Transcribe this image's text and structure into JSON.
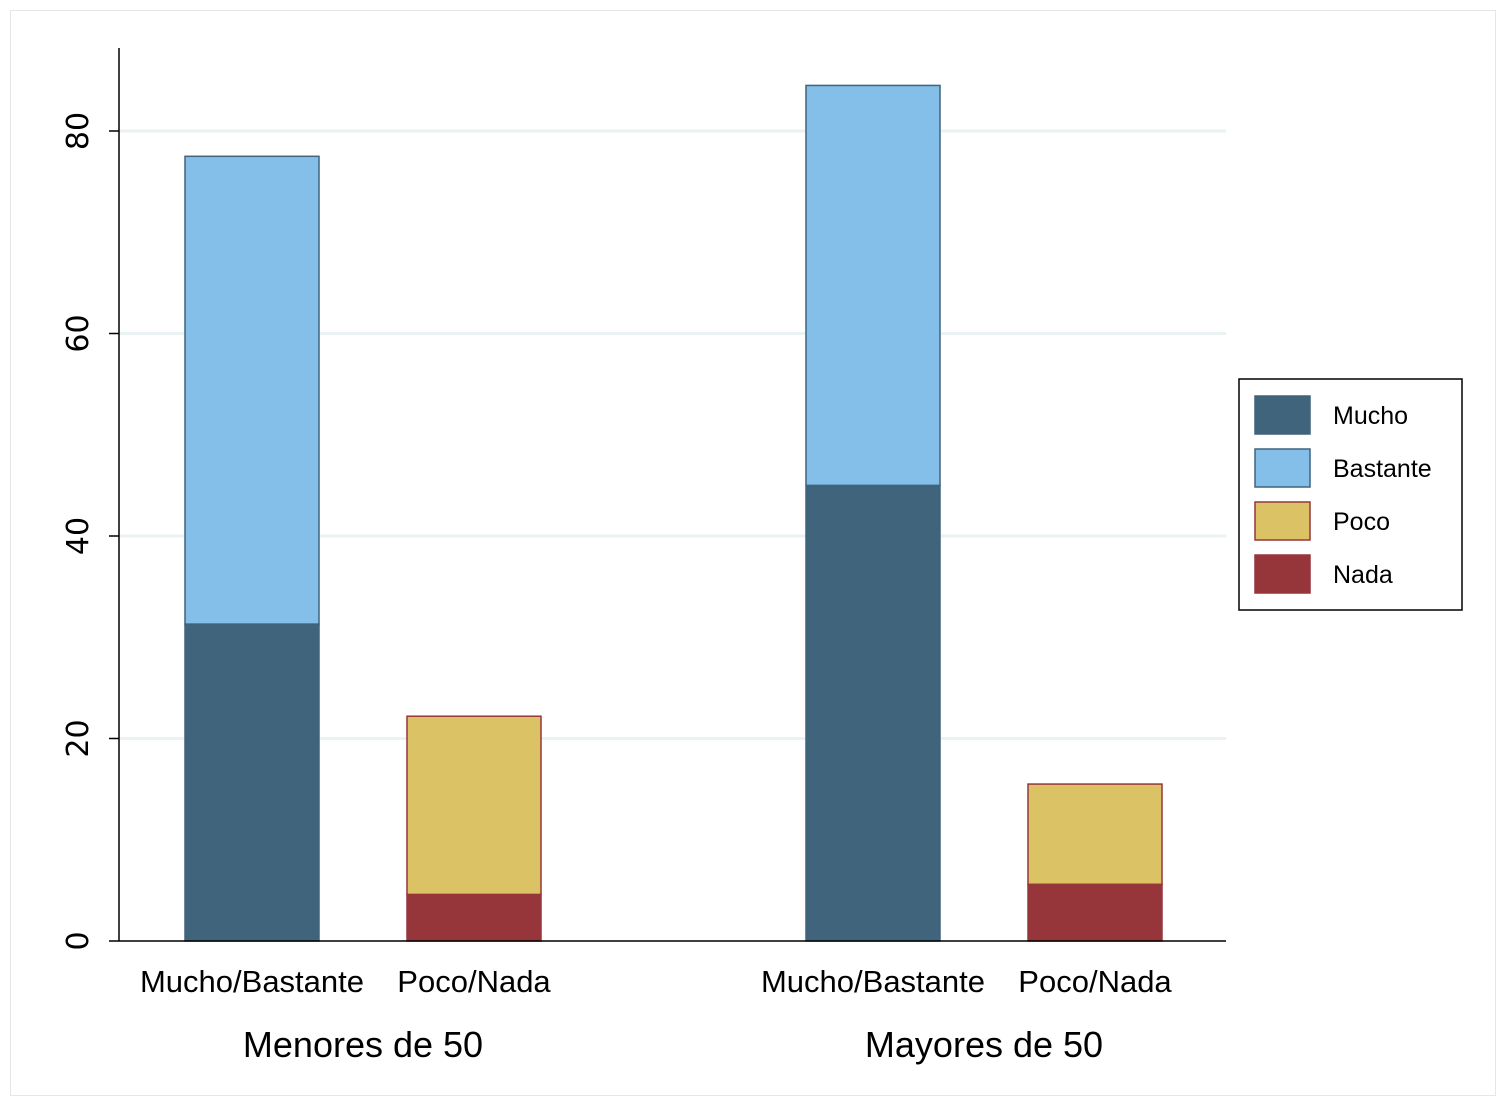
{
  "chart_data": {
    "type": "bar",
    "stacked": true,
    "title": "",
    "xlabel": "",
    "ylabel": "",
    "ylim": [
      0,
      88
    ],
    "yticks": [
      0,
      20,
      40,
      60,
      80
    ],
    "grid": true,
    "legend_position": "right",
    "groups": [
      {
        "label": "Menores de 50",
        "bars": [
          {
            "label": "Mucho/Bastante",
            "segments": [
              {
                "series": "Mucho",
                "value": 31.3
              },
              {
                "series": "Bastante",
                "value": 46.2
              }
            ]
          },
          {
            "label": "Poco/Nada",
            "segments": [
              {
                "series": "Nada",
                "value": 4.6
              },
              {
                "series": "Poco",
                "value": 17.6
              }
            ]
          }
        ]
      },
      {
        "label": "Mayores de 50",
        "bars": [
          {
            "label": "Mucho/Bastante",
            "segments": [
              {
                "series": "Mucho",
                "value": 45.0
              },
              {
                "series": "Bastante",
                "value": 39.5
              }
            ]
          },
          {
            "label": "Poco/Nada",
            "segments": [
              {
                "series": "Nada",
                "value": 5.6
              },
              {
                "series": "Poco",
                "value": 9.9
              }
            ]
          }
        ]
      }
    ],
    "series": [
      {
        "name": "Mucho",
        "color": "#3f647c",
        "stroke": "#3f647c"
      },
      {
        "name": "Bastante",
        "color": "#84bfea",
        "stroke": "#3f647c"
      },
      {
        "name": "Poco",
        "color": "#dbc365",
        "stroke": "#96363b"
      },
      {
        "name": "Nada",
        "color": "#96363b",
        "stroke": "#96363b"
      }
    ]
  }
}
